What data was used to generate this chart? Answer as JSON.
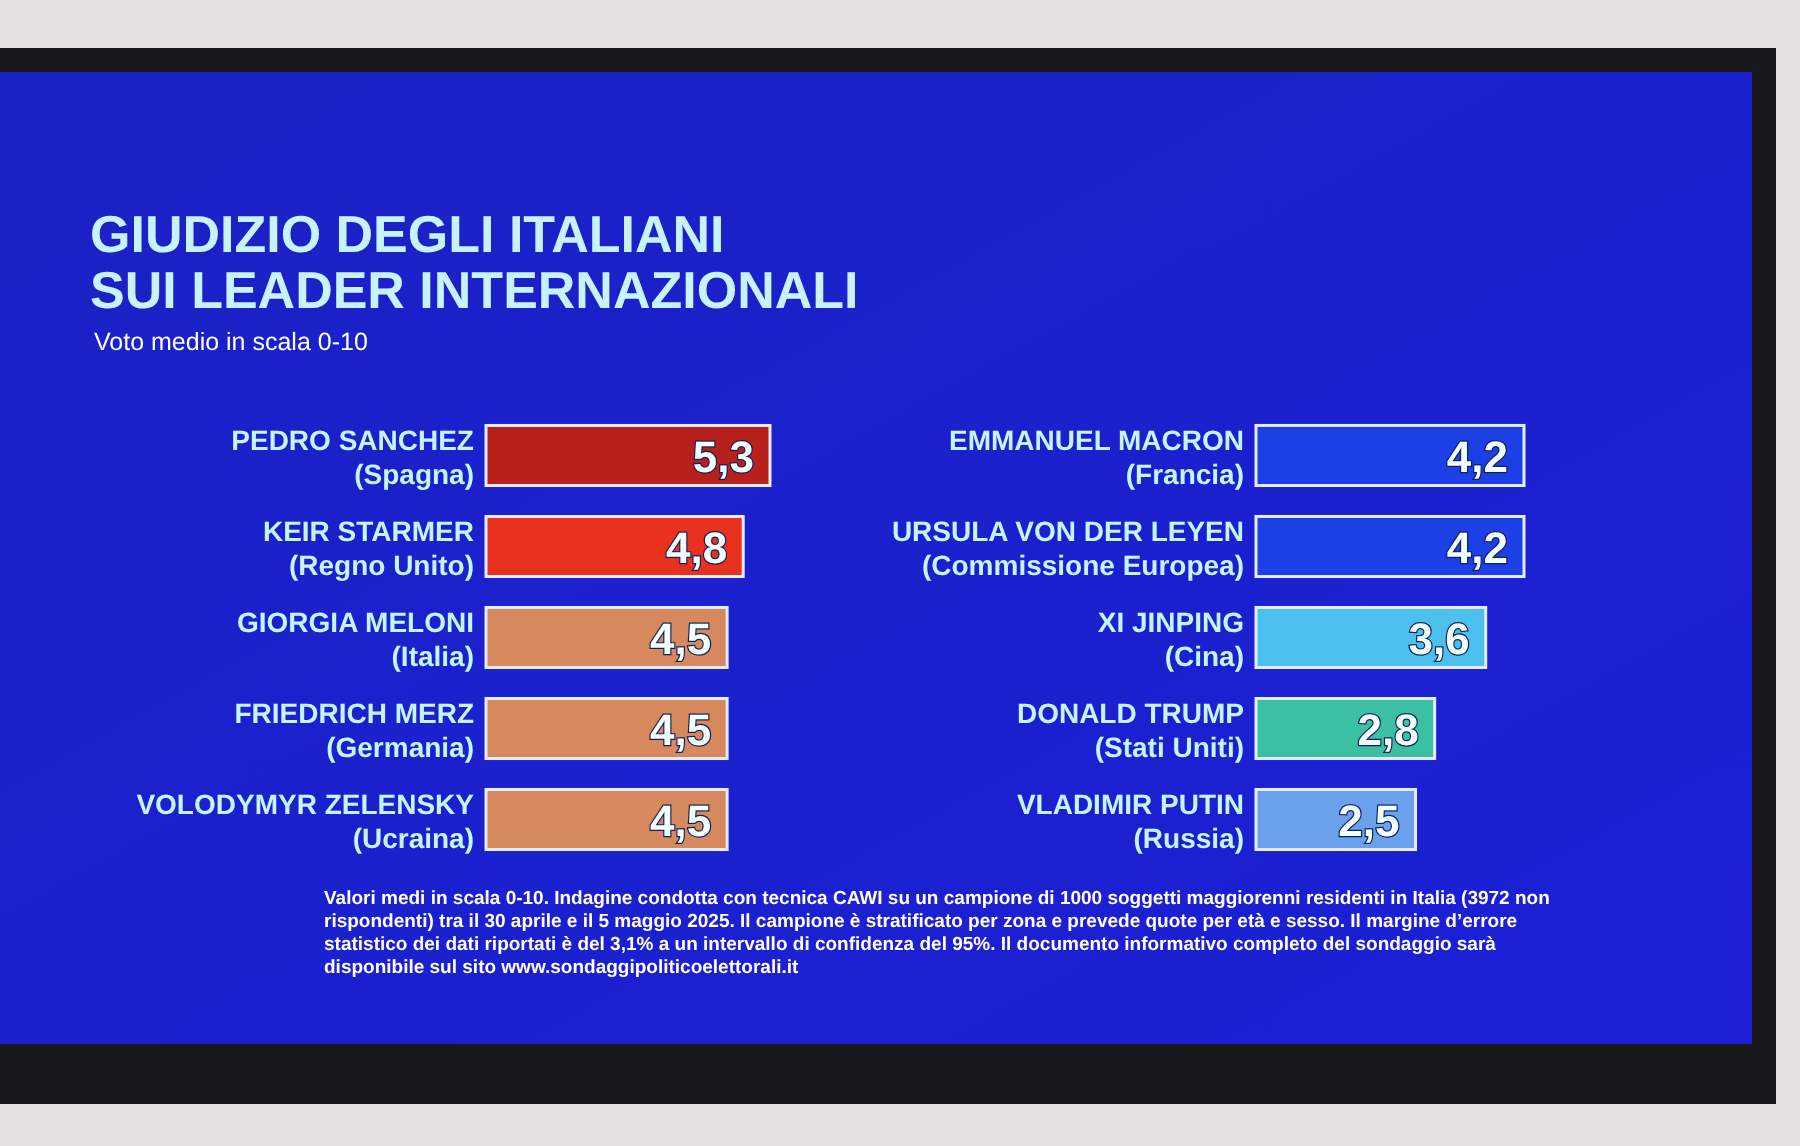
{
  "chart_data": [
    {
      "type": "bar",
      "orientation": "horizontal",
      "title": "GIUDIZIO DEGLI ITALIANI\nSUI LEADER INTERNAZIONALI",
      "subtitle": "Voto medio in scala 0-10",
      "categories": [
        "PEDRO SANCHEZ\n(Spagna)",
        "KEIR STARMER\n(Regno Unito)",
        "GIORGIA MELONI\n(Italia)",
        "FRIEDRICH MERZ\n(Germania)",
        "VOLODYMYR ZELENSKY\n(Ucraina)"
      ],
      "values": [
        5.3,
        4.8,
        4.5,
        4.5,
        4.5
      ],
      "colors": [
        "#b8201c",
        "#e8321e",
        "#d6895c",
        "#d6895c",
        "#d6895c"
      ],
      "value_labels": [
        "5,3",
        "4,8",
        "4,5",
        "4,5",
        "4,5"
      ],
      "tick_labels": "y",
      "annotations": [
        "Valori medi in scala 0-10. Indagine condotta con tecnica CAWI su un campione di 1000 soggetti maggiorenni residenti in Italia (3972 non rispondenti) tra il 30 aprile e il 5 maggio 2025. Il campione è stratificato per zona e prevede quote per età e sesso. Il margine d’errore statistico dei dati riportati è del 3,1% a un intervallo di confidenza del 95%. Il documento informativo completo del sondaggio sarà disponibile sul sito www.sondaggipoliticoelettorali.it"
      ]
    },
    {
      "type": "bar",
      "orientation": "horizontal",
      "categories": [
        "EMMANUEL MACRON\n(Francia)",
        "URSULA VON DER LEYEN\n(Commissione Europea)",
        "XI JINPING\n(Cina)",
        "DONALD TRUMP\n(Stati Uniti)",
        "VLADIMIR PUTIN\n(Russia)"
      ],
      "values": [
        4.2,
        4.2,
        3.6,
        2.8,
        2.5
      ],
      "colors": [
        "#1c3fe6",
        "#1c3fe6",
        "#4cc0ec",
        "#3cc0a4",
        "#6aa0ec"
      ],
      "value_labels": [
        "4,2",
        "4,2",
        "3,6",
        "2,8",
        "2,5"
      ],
      "tick_labels": "y"
    }
  ]
}
